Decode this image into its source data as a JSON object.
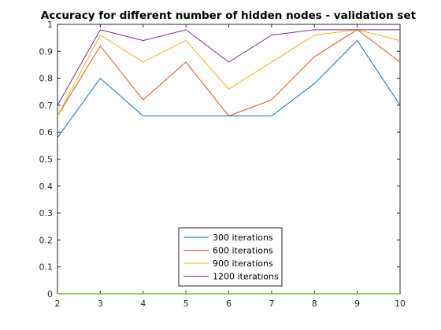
{
  "chart_data": {
    "type": "line",
    "title": "Accuracy for different number of hidden nodes - validation set",
    "xlabel": "",
    "ylabel": "",
    "x": [
      2,
      3,
      4,
      5,
      6,
      7,
      8,
      9,
      10
    ],
    "xlim": [
      2,
      10
    ],
    "ylim": [
      0,
      1
    ],
    "xticks": [
      2,
      3,
      4,
      5,
      6,
      7,
      8,
      9,
      10
    ],
    "yticks": [
      0,
      0.1,
      0.2,
      0.3,
      0.4,
      0.5,
      0.6,
      0.7,
      0.8,
      0.9,
      1
    ],
    "xtick_labels": [
      "2",
      "3",
      "4",
      "5",
      "6",
      "7",
      "8",
      "9",
      "10"
    ],
    "ytick_labels": [
      "0",
      "0.1",
      "0.2",
      "0.3",
      "0.4",
      "0.5",
      "0.6",
      "0.7",
      "0.8",
      "0.9",
      "1"
    ],
    "grid": false,
    "legend_position": "bottom-center",
    "series": [
      {
        "name": "300 iterations",
        "color": "#0072BD",
        "values": [
          0.58,
          0.8,
          0.66,
          0.66,
          0.66,
          0.66,
          0.78,
          0.94,
          0.7
        ]
      },
      {
        "name": "600 iterations",
        "color": "#D95319",
        "values": [
          0.66,
          0.92,
          0.72,
          0.86,
          0.66,
          0.72,
          0.88,
          0.98,
          0.86
        ]
      },
      {
        "name": "900 iterations",
        "color": "#EDB120",
        "values": [
          0.66,
          0.96,
          0.86,
          0.94,
          0.76,
          0.86,
          0.96,
          0.98,
          0.94
        ]
      },
      {
        "name": "1200 iterations",
        "color": "#7E2F8E",
        "values": [
          0.7,
          0.98,
          0.94,
          0.98,
          0.86,
          0.96,
          0.98,
          0.98,
          0.98
        ]
      }
    ],
    "baseline": {
      "color": "#77AC30",
      "value": 0
    }
  }
}
